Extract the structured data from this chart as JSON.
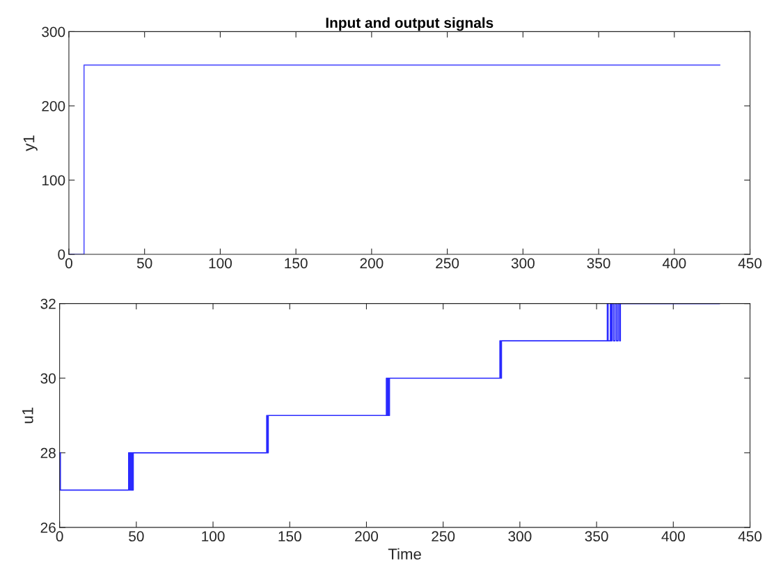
{
  "chart_data": [
    {
      "type": "step",
      "title": "Input and output signals",
      "ylabel": "y1",
      "xlim": [
        0,
        450
      ],
      "ylim": [
        0,
        300
      ],
      "xticks": [
        0,
        50,
        100,
        150,
        200,
        250,
        300,
        350,
        400,
        450
      ],
      "yticks": [
        0,
        100,
        200,
        300
      ],
      "grid": false,
      "legend": false,
      "series": [
        {
          "color": "#5555ff",
          "x": [
            0,
            10,
            430
          ],
          "values": [
            0,
            255,
            255
          ]
        }
      ]
    },
    {
      "type": "step",
      "xlabel": "Time",
      "ylabel": "u1",
      "xlim": [
        0,
        450
      ],
      "ylim": [
        26,
        32
      ],
      "xticks": [
        0,
        50,
        100,
        150,
        200,
        250,
        300,
        350,
        400,
        450
      ],
      "yticks": [
        26,
        28,
        30,
        32
      ],
      "grid": false,
      "legend": false,
      "series": [
        {
          "color": "#2a2aff",
          "x": [
            0,
            0.5,
            45,
            45.5,
            46,
            46.5,
            47,
            47.5,
            48,
            135,
            135.5,
            136,
            213,
            213.5,
            214,
            214.5,
            215,
            287,
            287.5,
            288,
            357,
            357.5,
            359,
            359.5,
            360,
            361,
            362,
            363,
            364,
            365,
            365.5,
            430
          ],
          "values": [
            28,
            27,
            28,
            27,
            28,
            27,
            28,
            27,
            28,
            29,
            28,
            29,
            30,
            29,
            30,
            29,
            30,
            31,
            30,
            31,
            32,
            31,
            32,
            31,
            32,
            31,
            32,
            31,
            32,
            31,
            32,
            32
          ]
        }
      ]
    }
  ]
}
